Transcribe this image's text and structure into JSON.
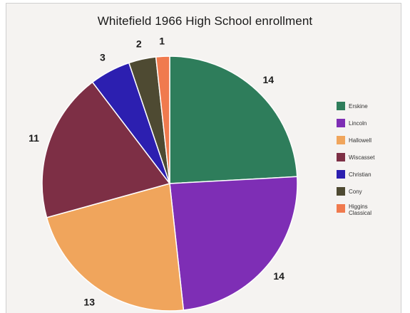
{
  "chart_data": {
    "type": "pie",
    "title": "Whitefield 1966 High School enrollment",
    "categories": [
      "Erskine",
      "Lincoln",
      "Hallowell",
      "Wiscasset",
      "Christian",
      "Cony",
      "Higgins Classical"
    ],
    "values": [
      14,
      14,
      13,
      11,
      3,
      2,
      1
    ],
    "colors": [
      "#2e7d5b",
      "#7e2eb5",
      "#f0a55c",
      "#7d2f45",
      "#2c1fb0",
      "#4e4a32",
      "#f07a4e"
    ],
    "legend_position": "right",
    "show_value_labels": true
  }
}
